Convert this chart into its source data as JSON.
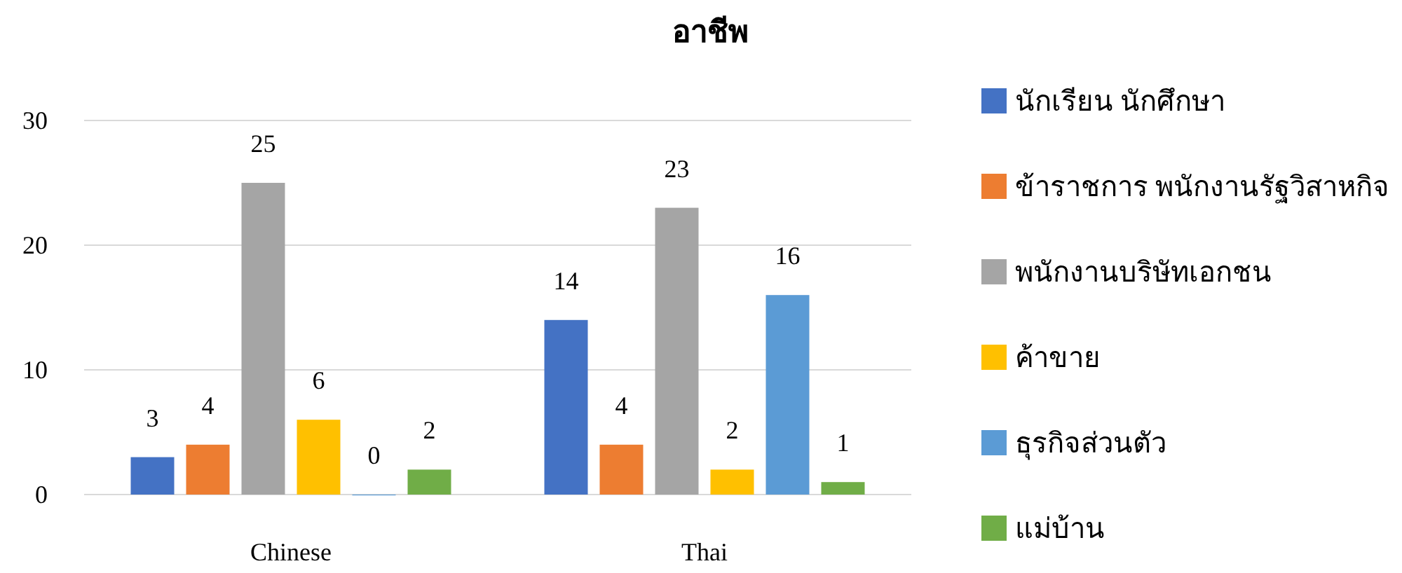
{
  "chart_data": {
    "type": "bar",
    "title": "อาชีพ",
    "categories": [
      "Chinese",
      "Thai"
    ],
    "series": [
      {
        "name": "นักเรียน นักศึกษา",
        "color": "#4472c4",
        "values": [
          3,
          14
        ]
      },
      {
        "name": "ข้าราชการ พนักงานรัฐวิสาหกิจ",
        "color": "#ed7d31",
        "values": [
          4,
          4
        ]
      },
      {
        "name": "พนักงานบริษัทเอกชน",
        "color": "#a5a5a5",
        "values": [
          25,
          23
        ]
      },
      {
        "name": "ค้าขาย",
        "color": "#ffc000",
        "values": [
          6,
          2
        ]
      },
      {
        "name": "ธุรกิจส่วนตัว",
        "color": "#5b9bd5",
        "values": [
          0,
          16
        ]
      },
      {
        "name": "แม่บ้าน",
        "color": "#70ad47",
        "values": [
          2,
          1
        ]
      }
    ],
    "ylim": [
      0,
      30
    ],
    "yticks": [
      0,
      10,
      20,
      30
    ],
    "grid": "y",
    "legend": "right",
    "data_labels": true
  }
}
